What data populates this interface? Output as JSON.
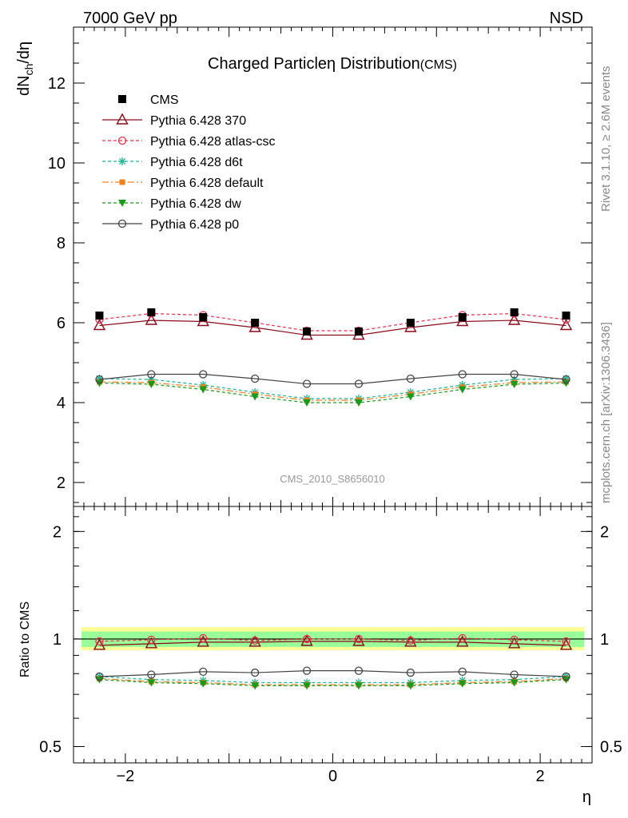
{
  "header": {
    "left": "7000 GeV pp",
    "right": "NSD"
  },
  "side_labels": {
    "rivet": "Rivet 3.1.10, ≥ 2.6M events",
    "mcplots": "mcplots.cern.ch [arXiv:1306.3436]"
  },
  "watermark": "CMS_2010_S8656010",
  "chart_data": [
    {
      "type": "line",
      "title": "Charged Particleη Distribution",
      "title_suffix": "(CMS)",
      "ylabel": "dN_ch/dη",
      "xlabel": "",
      "xlim": [
        -2.5,
        2.5
      ],
      "ylim": [
        1.4,
        13.4
      ],
      "yticks": [
        2,
        4,
        6,
        8,
        10,
        12
      ],
      "ytick_labels": [
        "2",
        "4",
        "6",
        "8",
        "10",
        "12"
      ],
      "x": [
        -2.25,
        -1.75,
        -1.25,
        -0.75,
        -0.25,
        0.25,
        0.75,
        1.25,
        1.75,
        2.25
      ],
      "legend_placement": "top-left",
      "series": [
        {
          "name": "CMS",
          "color": "#000000",
          "marker": "square",
          "dash": "none",
          "values": [
            6.18,
            6.26,
            6.14,
            6.0,
            5.78,
            5.78,
            6.0,
            6.14,
            6.26,
            6.18
          ]
        },
        {
          "name": "Pythia 6.428 370",
          "color": "#8b0a1a",
          "marker": "triangle-open",
          "dash": "solid",
          "values": [
            5.93,
            6.06,
            6.03,
            5.88,
            5.69,
            5.69,
            5.88,
            6.03,
            6.06,
            5.93
          ]
        },
        {
          "name": "Pythia 6.428 atlas-csc",
          "color": "#ee2e4f",
          "marker": "circle-open",
          "dash": "dashed",
          "values": [
            6.08,
            6.23,
            6.19,
            6.0,
            5.8,
            5.8,
            6.0,
            6.19,
            6.23,
            6.08
          ]
        },
        {
          "name": "Pythia 6.428 d6t",
          "color": "#19b399",
          "marker": "star",
          "dash": "dashed",
          "values": [
            4.6,
            4.58,
            4.44,
            4.26,
            4.1,
            4.1,
            4.26,
            4.44,
            4.58,
            4.6
          ]
        },
        {
          "name": "Pythia 6.428 default",
          "color": "#f08020",
          "marker": "square-small",
          "dash": "dashdot",
          "values": [
            4.52,
            4.5,
            4.39,
            4.21,
            4.06,
            4.06,
            4.21,
            4.39,
            4.5,
            4.52
          ]
        },
        {
          "name": "Pythia 6.428 dw",
          "color": "#1a9a1a",
          "marker": "triangle-down",
          "dash": "dashed",
          "values": [
            4.49,
            4.46,
            4.33,
            4.15,
            4.0,
            4.0,
            4.15,
            4.33,
            4.46,
            4.49
          ]
        },
        {
          "name": "Pythia 6.428 p0",
          "color": "#444444",
          "marker": "circle-open",
          "dash": "solid",
          "values": [
            4.58,
            4.71,
            4.71,
            4.6,
            4.47,
            4.47,
            4.6,
            4.71,
            4.71,
            4.58
          ]
        }
      ]
    },
    {
      "type": "line",
      "ylabel": "Ratio to CMS",
      "xlabel": "η",
      "xlim": [
        -2.5,
        2.5
      ],
      "ylim": [
        0.45,
        2.35
      ],
      "scale": "log",
      "yticks": [
        0.5,
        1,
        2
      ],
      "ytick_labels": [
        "0.5",
        "1",
        "2"
      ],
      "xticks": [
        -2,
        0,
        2
      ],
      "xtick_labels": [
        "−2",
        "0",
        "2"
      ],
      "x": [
        -2.25,
        -1.75,
        -1.25,
        -0.75,
        -0.25,
        0.25,
        0.75,
        1.25,
        1.75,
        2.25
      ],
      "bands": {
        "inner": [
          0.95,
          1.05
        ],
        "outer": [
          0.93,
          1.08
        ],
        "inner_color": "#99ff99",
        "outer_color": "#ffff99"
      },
      "series": [
        {
          "name": "Pythia 6.428 370",
          "values": [
            0.96,
            0.97,
            0.98,
            0.98,
            0.985,
            0.985,
            0.98,
            0.98,
            0.97,
            0.96
          ]
        },
        {
          "name": "Pythia 6.428 atlas-csc",
          "values": [
            0.985,
            0.995,
            1.005,
            0.99,
            1.0,
            1.0,
            0.99,
            1.005,
            0.995,
            0.985
          ]
        },
        {
          "name": "Pythia 6.428 d6t",
          "values": [
            0.785,
            0.77,
            0.765,
            0.755,
            0.755,
            0.755,
            0.755,
            0.765,
            0.77,
            0.785
          ]
        },
        {
          "name": "Pythia 6.428 default",
          "values": [
            0.775,
            0.76,
            0.755,
            0.745,
            0.745,
            0.745,
            0.745,
            0.755,
            0.76,
            0.775
          ]
        },
        {
          "name": "Pythia 6.428 dw",
          "values": [
            0.77,
            0.755,
            0.75,
            0.74,
            0.74,
            0.74,
            0.74,
            0.75,
            0.755,
            0.77
          ]
        },
        {
          "name": "Pythia 6.428 p0",
          "values": [
            0.785,
            0.795,
            0.81,
            0.805,
            0.815,
            0.815,
            0.805,
            0.81,
            0.795,
            0.785
          ]
        }
      ]
    }
  ]
}
